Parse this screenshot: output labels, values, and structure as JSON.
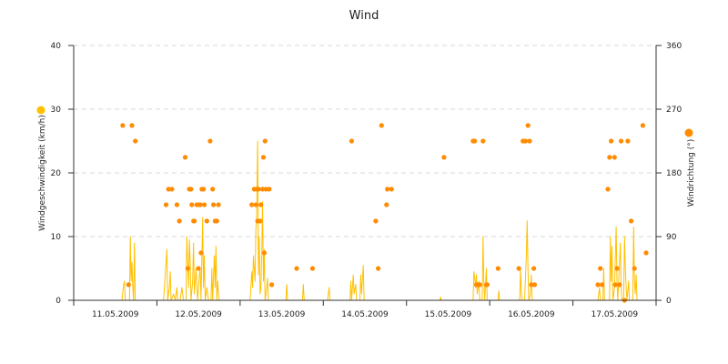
{
  "chart_data": {
    "type": "line",
    "title": "Wind",
    "y_left": {
      "label": "Windgeschwindigkeit (km/h)",
      "ticks": [
        "0",
        "10",
        "20",
        "30",
        "40"
      ],
      "range": [
        0,
        40
      ]
    },
    "y_right": {
      "label": "Windrichtung (°)",
      "ticks": [
        "0",
        "90",
        "180",
        "270",
        "360"
      ],
      "range": [
        0,
        360
      ]
    },
    "x_axis": {
      "range": [
        0,
        7
      ],
      "tick_labels": [
        "11.05.2009",
        "12.05.2009",
        "13.05.2009",
        "14.05.2009",
        "15.05.2009",
        "16.05.2009",
        "17.05.2009"
      ]
    },
    "grid": "horizontal-dashed",
    "colors": {
      "speed": "#ffc000",
      "direction": "#ff8c00",
      "grid": "#d9d9d9",
      "axis": "#333333"
    },
    "series": [
      {
        "kind": "line",
        "axis": "left",
        "values": [
          [
            0.58,
            0
          ],
          [
            0.6,
            2.5
          ],
          [
            0.61,
            3
          ],
          [
            0.62,
            0
          ],
          [
            0.67,
            0
          ],
          [
            0.68,
            10
          ],
          [
            0.69,
            3
          ],
          [
            0.7,
            6
          ],
          [
            0.71,
            2
          ],
          [
            0.72,
            0
          ],
          [
            0.73,
            9
          ],
          [
            0.74,
            0
          ],
          [
            0.78,
            0
          ],
          [
            1.08,
            0
          ],
          [
            1.1,
            4
          ],
          [
            1.12,
            8
          ],
          [
            1.13,
            0
          ],
          [
            1.15,
            2
          ],
          [
            1.16,
            4.5
          ],
          [
            1.17,
            0
          ],
          [
            1.2,
            1
          ],
          [
            1.22,
            0
          ],
          [
            1.24,
            2
          ],
          [
            1.25,
            0
          ],
          [
            1.28,
            0
          ],
          [
            1.3,
            2
          ],
          [
            1.32,
            0
          ],
          [
            1.35,
            0
          ],
          [
            1.36,
            10
          ],
          [
            1.38,
            2
          ],
          [
            1.39,
            9.5
          ],
          [
            1.4,
            6
          ],
          [
            1.41,
            0
          ],
          [
            1.43,
            3
          ],
          [
            1.44,
            9
          ],
          [
            1.45,
            1
          ],
          [
            1.47,
            5
          ],
          [
            1.49,
            0
          ],
          [
            1.51,
            4
          ],
          [
            1.52,
            5
          ],
          [
            1.53,
            0
          ],
          [
            1.55,
            13
          ],
          [
            1.56,
            2
          ],
          [
            1.57,
            7
          ],
          [
            1.58,
            0
          ],
          [
            1.6,
            2
          ],
          [
            1.62,
            0
          ],
          [
            1.65,
            0
          ],
          [
            1.66,
            5
          ],
          [
            1.67,
            0
          ],
          [
            1.69,
            7
          ],
          [
            1.7,
            2
          ],
          [
            1.71,
            8.5
          ],
          [
            1.72,
            0
          ],
          [
            1.73,
            3
          ],
          [
            1.74,
            1
          ],
          [
            1.75,
            0
          ],
          [
            2.12,
            0
          ],
          [
            2.14,
            4.5
          ],
          [
            2.15,
            2
          ],
          [
            2.16,
            7
          ],
          [
            2.18,
            3
          ],
          [
            2.19,
            11
          ],
          [
            2.2,
            14
          ],
          [
            2.21,
            25
          ],
          [
            2.22,
            4
          ],
          [
            2.23,
            10
          ],
          [
            2.24,
            1
          ],
          [
            2.25,
            2
          ],
          [
            2.26,
            7
          ],
          [
            2.27,
            15.5
          ],
          [
            2.28,
            3
          ],
          [
            2.29,
            8
          ],
          [
            2.3,
            0
          ],
          [
            2.32,
            2
          ],
          [
            2.33,
            3.5
          ],
          [
            2.34,
            0
          ],
          [
            2.55,
            0
          ],
          [
            2.56,
            2.5
          ],
          [
            2.57,
            0
          ],
          [
            2.75,
            0
          ],
          [
            2.76,
            2.5
          ],
          [
            2.77,
            0
          ],
          [
            3.05,
            0
          ],
          [
            3.07,
            2
          ],
          [
            3.08,
            0
          ],
          [
            3.32,
            0
          ],
          [
            3.33,
            3
          ],
          [
            3.34,
            0
          ],
          [
            3.36,
            4
          ],
          [
            3.37,
            1
          ],
          [
            3.39,
            2.5
          ],
          [
            3.4,
            0
          ],
          [
            3.44,
            0
          ],
          [
            3.45,
            4
          ],
          [
            3.46,
            1
          ],
          [
            3.48,
            5.5
          ],
          [
            3.49,
            0
          ],
          [
            4.4,
            0
          ],
          [
            4.41,
            0.5
          ],
          [
            4.42,
            0
          ],
          [
            4.8,
            0
          ],
          [
            4.81,
            4.5
          ],
          [
            4.82,
            3.5
          ],
          [
            4.83,
            2
          ],
          [
            4.84,
            4
          ],
          [
            4.85,
            1
          ],
          [
            4.87,
            3
          ],
          [
            4.88,
            0
          ],
          [
            4.91,
            0
          ],
          [
            4.92,
            10
          ],
          [
            4.93,
            3
          ],
          [
            4.94,
            0
          ],
          [
            4.96,
            5
          ],
          [
            4.97,
            0
          ],
          [
            5.1,
            0
          ],
          [
            5.11,
            1.5
          ],
          [
            5.12,
            0
          ],
          [
            5.36,
            0
          ],
          [
            5.37,
            5
          ],
          [
            5.38,
            1
          ],
          [
            5.39,
            0
          ],
          [
            5.42,
            0
          ],
          [
            5.44,
            7
          ],
          [
            5.45,
            12.5
          ],
          [
            5.46,
            5
          ],
          [
            5.47,
            0
          ],
          [
            5.49,
            1
          ],
          [
            5.5,
            4
          ],
          [
            5.51,
            0
          ],
          [
            5.53,
            0
          ],
          [
            6.3,
            0
          ],
          [
            6.32,
            2
          ],
          [
            6.33,
            0
          ],
          [
            6.36,
            0
          ],
          [
            6.37,
            5
          ],
          [
            6.38,
            0
          ],
          [
            6.44,
            0
          ],
          [
            6.45,
            10
          ],
          [
            6.46,
            3
          ],
          [
            6.47,
            8.5
          ],
          [
            6.48,
            0
          ],
          [
            6.5,
            2
          ],
          [
            6.52,
            11.5
          ],
          [
            6.53,
            3
          ],
          [
            6.54,
            0
          ],
          [
            6.56,
            6
          ],
          [
            6.57,
            9
          ],
          [
            6.58,
            2
          ],
          [
            6.59,
            0
          ],
          [
            6.61,
            0
          ],
          [
            6.62,
            10
          ],
          [
            6.63,
            5
          ],
          [
            6.64,
            2
          ],
          [
            6.65,
            0
          ],
          [
            6.67,
            3
          ],
          [
            6.68,
            0
          ],
          [
            6.72,
            0
          ],
          [
            6.73,
            11.5
          ],
          [
            6.74,
            3
          ],
          [
            6.75,
            1
          ],
          [
            6.76,
            4
          ],
          [
            6.77,
            0
          ]
        ]
      },
      {
        "kind": "scatter",
        "axis": "right",
        "values": [
          [
            0.59,
            247
          ],
          [
            0.66,
            22
          ],
          [
            0.7,
            247
          ],
          [
            0.74,
            225
          ],
          [
            1.11,
            135
          ],
          [
            1.14,
            157
          ],
          [
            1.18,
            157
          ],
          [
            1.24,
            135
          ],
          [
            1.27,
            112
          ],
          [
            1.34,
            202
          ],
          [
            1.37,
            45
          ],
          [
            1.39,
            157
          ],
          [
            1.41,
            157
          ],
          [
            1.42,
            135
          ],
          [
            1.44,
            112
          ],
          [
            1.45,
            112
          ],
          [
            1.48,
            135
          ],
          [
            1.5,
            45
          ],
          [
            1.51,
            135
          ],
          [
            1.52,
            135
          ],
          [
            1.53,
            67
          ],
          [
            1.54,
            157
          ],
          [
            1.56,
            157
          ],
          [
            1.57,
            135
          ],
          [
            1.6,
            112
          ],
          [
            1.64,
            225
          ],
          [
            1.67,
            157
          ],
          [
            1.68,
            135
          ],
          [
            1.7,
            112
          ],
          [
            1.72,
            112
          ],
          [
            1.74,
            135
          ],
          [
            2.14,
            135
          ],
          [
            2.17,
            157
          ],
          [
            2.19,
            135
          ],
          [
            2.2,
            157
          ],
          [
            2.21,
            112
          ],
          [
            2.22,
            157
          ],
          [
            2.24,
            112
          ],
          [
            2.25,
            135
          ],
          [
            2.27,
            157
          ],
          [
            2.28,
            202
          ],
          [
            2.29,
            67
          ],
          [
            2.3,
            225
          ],
          [
            2.31,
            157
          ],
          [
            2.35,
            157
          ],
          [
            2.38,
            22
          ],
          [
            2.68,
            45
          ],
          [
            2.87,
            45
          ],
          [
            3.34,
            225
          ],
          [
            3.63,
            112
          ],
          [
            3.66,
            45
          ],
          [
            3.7,
            247
          ],
          [
            3.76,
            135
          ],
          [
            3.77,
            157
          ],
          [
            3.82,
            157
          ],
          [
            4.45,
            202
          ],
          [
            4.8,
            225
          ],
          [
            4.82,
            225
          ],
          [
            4.84,
            22
          ],
          [
            4.86,
            22
          ],
          [
            4.88,
            22
          ],
          [
            4.92,
            225
          ],
          [
            4.96,
            22
          ],
          [
            4.97,
            22
          ],
          [
            5.1,
            45
          ],
          [
            5.35,
            45
          ],
          [
            5.4,
            225
          ],
          [
            5.43,
            225
          ],
          [
            5.46,
            247
          ],
          [
            5.48,
            225
          ],
          [
            5.5,
            22
          ],
          [
            5.53,
            45
          ],
          [
            5.54,
            22
          ],
          [
            6.3,
            22
          ],
          [
            6.33,
            45
          ],
          [
            6.35,
            22
          ],
          [
            6.42,
            157
          ],
          [
            6.44,
            202
          ],
          [
            6.46,
            225
          ],
          [
            6.5,
            202
          ],
          [
            6.51,
            22
          ],
          [
            6.53,
            45
          ],
          [
            6.56,
            22
          ],
          [
            6.58,
            225
          ],
          [
            6.62,
            0
          ],
          [
            6.66,
            225
          ],
          [
            6.7,
            112
          ],
          [
            6.74,
            45
          ],
          [
            6.84,
            247
          ],
          [
            6.88,
            67
          ]
        ]
      }
    ]
  }
}
